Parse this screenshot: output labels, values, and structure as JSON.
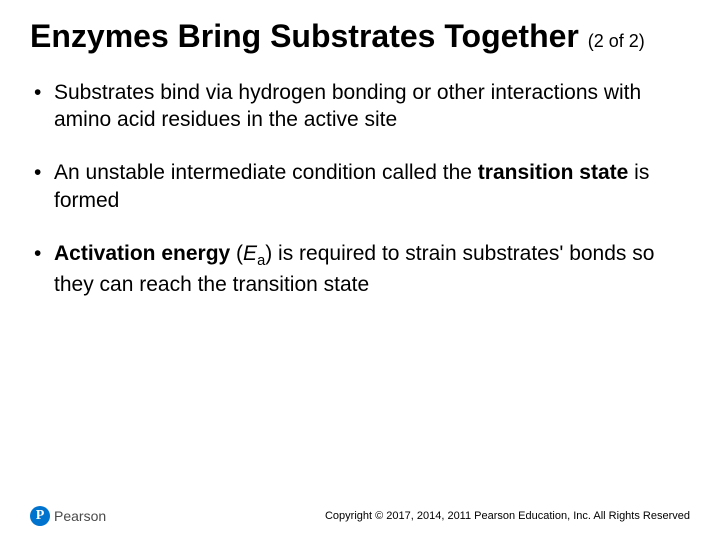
{
  "title": {
    "main": "Enzymes Bring Substrates Together",
    "sub": "(2 of 2)"
  },
  "bullets": [
    {
      "pre": "Substrates bind via hydrogen bonding or other interactions with amino acid residues in the active site"
    },
    {
      "pre": "An unstable intermediate condition called the ",
      "bold": "transition state",
      "post": " is formed"
    },
    {
      "bold": "Activation energy",
      "mid1": " (",
      "italic": "E",
      "sub": "a",
      "mid2": ") is required to strain substrates' bonds so they can reach the transition state"
    }
  ],
  "logo": {
    "mark": "P",
    "text": "Pearson"
  },
  "copyright": "Copyright © 2017, 2014, 2011 Pearson Education, Inc. All Rights Reserved",
  "colors": {
    "brand": "#0073cf",
    "text": "#000000",
    "background": "#ffffff"
  }
}
